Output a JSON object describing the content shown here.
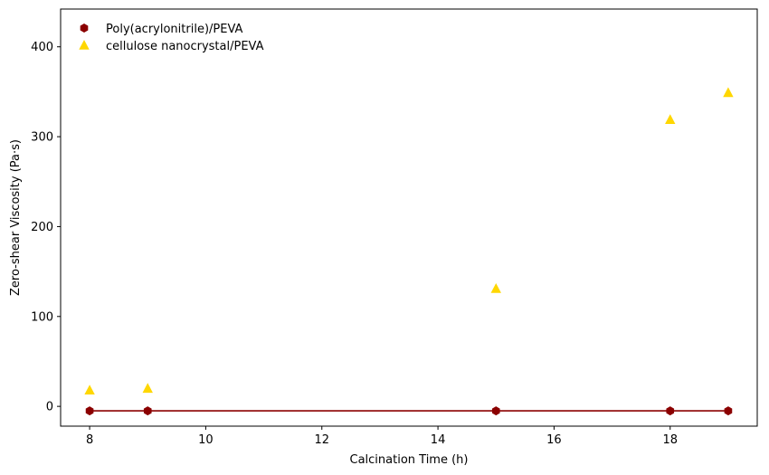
{
  "chart_data": {
    "type": "scatter",
    "title": "",
    "xlabel": "Calcination Time (h)",
    "ylabel": "Zero-shear Viscosity (Pa·s)",
    "xlim": [
      7.5,
      19.5
    ],
    "ylim": [
      -22,
      442
    ],
    "xticks": [
      8,
      10,
      12,
      14,
      16,
      18
    ],
    "yticks": [
      0,
      100,
      200,
      300,
      400
    ],
    "grid": false,
    "legend_position": "top-left",
    "series": [
      {
        "name": "Poly(acrylonitrile)/PEVA",
        "marker": "hexagon",
        "color": "#8b0000",
        "fit_line": true,
        "x": [
          8,
          9,
          15,
          18,
          19
        ],
        "y": [
          -5,
          -5,
          -5,
          -5,
          -5
        ]
      },
      {
        "name": "cellulose nanocrystal/PEVA",
        "marker": "triangle",
        "color": "#ffd700",
        "fit_line": false,
        "x": [
          8,
          9,
          15,
          18,
          19
        ],
        "y": [
          18,
          20,
          131,
          319,
          349
        ]
      }
    ]
  }
}
